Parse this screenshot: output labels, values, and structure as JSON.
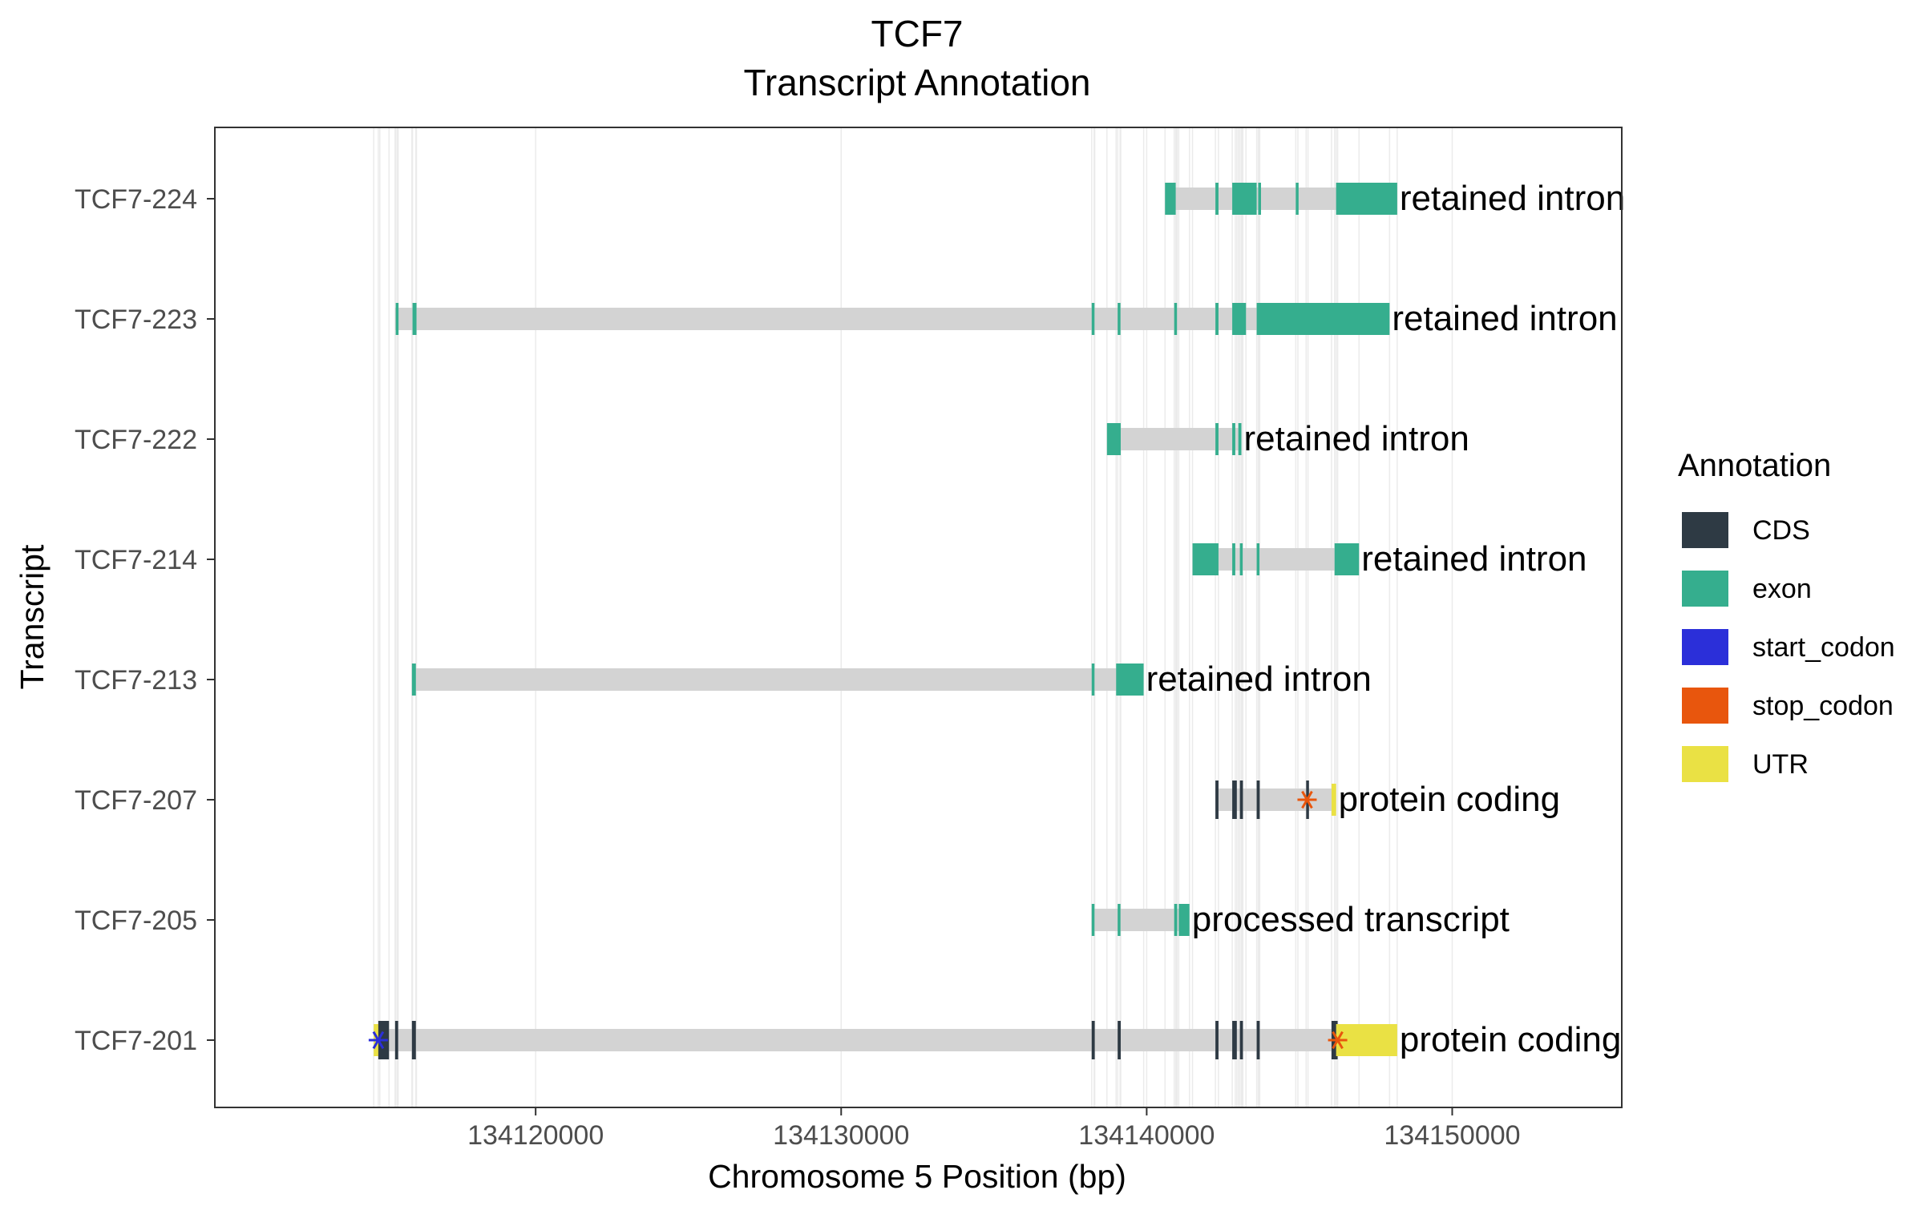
{
  "chart_data": {
    "type": "gene-transcript-annotation",
    "title": "TCF7",
    "subtitle": "Transcript Annotation",
    "xlabel": "Chromosome 5 Position (bp)",
    "ylabel": "Transcript",
    "xlim": [
      134109500,
      155550
    ],
    "xticks": [
      134120000,
      134130000,
      134140000,
      134150000
    ],
    "grid": true,
    "legend_position": "right",
    "legend": {
      "title": "Annotation",
      "entries": [
        {
          "label": "CDS",
          "color": "#2E3A44"
        },
        {
          "label": "exon",
          "color": "#35AE8E"
        },
        {
          "label": "start_codon",
          "color": "#2B2FD9"
        },
        {
          "label": "stop_codon",
          "color": "#E8560D"
        },
        {
          "label": "UTR",
          "color": "#EAE144"
        }
      ]
    },
    "intron_color": "#D3D3D3",
    "transcripts": [
      {
        "name": "TCF7-224",
        "biotype": "retained intron",
        "start": 134140600,
        "end": 134148200,
        "features": [
          {
            "type": "exon",
            "start": 134140600,
            "end": 134140950
          },
          {
            "type": "exon",
            "start": 134142250,
            "end": 134142350
          },
          {
            "type": "exon",
            "start": 134142800,
            "end": 134143600
          },
          {
            "type": "exon",
            "start": 134143650,
            "end": 134143700
          },
          {
            "type": "exon",
            "start": 134144880,
            "end": 134144950
          },
          {
            "type": "exon",
            "start": 134146200,
            "end": 134148200
          }
        ]
      },
      {
        "name": "TCF7-223",
        "biotype": "retained intron",
        "start": 134115400,
        "end": 134147950,
        "features": [
          {
            "type": "exon",
            "start": 134115420,
            "end": 134115470
          },
          {
            "type": "exon",
            "start": 134115970,
            "end": 134116100
          },
          {
            "type": "exon",
            "start": 134138200,
            "end": 134138280
          },
          {
            "type": "exon",
            "start": 134139050,
            "end": 134139130
          },
          {
            "type": "exon",
            "start": 134140900,
            "end": 134140980
          },
          {
            "type": "exon",
            "start": 134142250,
            "end": 134142350
          },
          {
            "type": "exon",
            "start": 134142800,
            "end": 134143250
          },
          {
            "type": "exon",
            "start": 134143600,
            "end": 134147950
          }
        ]
      },
      {
        "name": "TCF7-222",
        "biotype": "retained intron",
        "start": 134138700,
        "end": 134143100,
        "features": [
          {
            "type": "exon",
            "start": 134138700,
            "end": 134139150
          },
          {
            "type": "exon",
            "start": 134142250,
            "end": 134142350
          },
          {
            "type": "exon",
            "start": 134142800,
            "end": 134142900
          },
          {
            "type": "exon",
            "start": 134143000,
            "end": 134143100
          }
        ]
      },
      {
        "name": "TCF7-214",
        "biotype": "retained intron",
        "start": 134141500,
        "end": 134146950,
        "features": [
          {
            "type": "exon",
            "start": 134141500,
            "end": 134142350
          },
          {
            "type": "exon",
            "start": 134142800,
            "end": 134142900
          },
          {
            "type": "exon",
            "start": 134143050,
            "end": 134143120
          },
          {
            "type": "exon",
            "start": 134143600,
            "end": 134143680
          },
          {
            "type": "exon",
            "start": 134146150,
            "end": 134146950
          }
        ]
      },
      {
        "name": "TCF7-213",
        "biotype": "retained intron",
        "start": 134115950,
        "end": 134139900,
        "features": [
          {
            "type": "exon",
            "start": 134115950,
            "end": 134116080
          },
          {
            "type": "exon",
            "start": 134138200,
            "end": 134138280
          },
          {
            "type": "exon",
            "start": 134139000,
            "end": 134139900
          }
        ]
      },
      {
        "name": "TCF7-207",
        "biotype": "protein coding",
        "start": 134142250,
        "end": 134146200,
        "features": [
          {
            "type": "CDS",
            "start": 134142250,
            "end": 134142350
          },
          {
            "type": "CDS",
            "start": 134142800,
            "end": 134142950
          },
          {
            "type": "CDS",
            "start": 134143050,
            "end": 134143150
          },
          {
            "type": "CDS",
            "start": 134143600,
            "end": 134143700
          },
          {
            "type": "CDS",
            "start": 134145220,
            "end": 134145280
          },
          {
            "type": "UTR",
            "start": 134146050,
            "end": 134146200
          }
        ],
        "stop_codon": 134145250
      },
      {
        "name": "TCF7-205",
        "biotype": "processed transcript",
        "start": 134138200,
        "end": 134141400,
        "features": [
          {
            "type": "exon",
            "start": 134138200,
            "end": 134138280
          },
          {
            "type": "exon",
            "start": 134139050,
            "end": 134139130
          },
          {
            "type": "exon",
            "start": 134140900,
            "end": 134141000
          },
          {
            "type": "exon",
            "start": 134141050,
            "end": 134141400
          }
        ]
      },
      {
        "name": "TCF7-201",
        "biotype": "protein coding",
        "start": 134114700,
        "end": 134148200,
        "features": [
          {
            "type": "UTR",
            "start": 134114700,
            "end": 134114900
          },
          {
            "type": "CDS",
            "start": 134114850,
            "end": 134115200
          },
          {
            "type": "CDS",
            "start": 134115400,
            "end": 134115500
          },
          {
            "type": "CDS",
            "start": 134115950,
            "end": 134116080
          },
          {
            "type": "CDS",
            "start": 134138200,
            "end": 134138300
          },
          {
            "type": "CDS",
            "start": 134139050,
            "end": 134139150
          },
          {
            "type": "CDS",
            "start": 134142250,
            "end": 134142350
          },
          {
            "type": "CDS",
            "start": 134142800,
            "end": 134142950
          },
          {
            "type": "CDS",
            "start": 134143050,
            "end": 134143150
          },
          {
            "type": "CDS",
            "start": 134143600,
            "end": 134143700
          },
          {
            "type": "CDS",
            "start": 134146050,
            "end": 134146250
          },
          {
            "type": "UTR",
            "start": 134146200,
            "end": 134148200
          }
        ],
        "start_codon": 134114850,
        "stop_codon": 134146250
      }
    ]
  }
}
